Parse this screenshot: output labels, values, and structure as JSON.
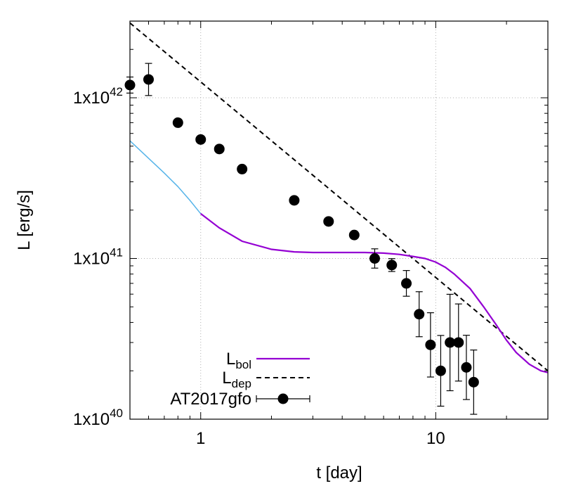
{
  "chart_data": {
    "type": "line",
    "xlabel": "t [day]",
    "ylabel": "L [erg/s]",
    "x_scale": "log",
    "y_scale": "log",
    "xlim": [
      0.5,
      30
    ],
    "ylim": [
      1e+40,
      3e+42
    ],
    "grid": true,
    "legend_position": "bottom-left",
    "x_ticks": [
      {
        "value": 1,
        "label": "1"
      },
      {
        "value": 10,
        "label": "10"
      }
    ],
    "y_ticks": [
      {
        "value": 1e+40,
        "mantissa": "1x10",
        "exponent": "40"
      },
      {
        "value": 1e+41,
        "mantissa": "1x10",
        "exponent": "41"
      },
      {
        "value": 1e+42,
        "mantissa": "1x10",
        "exponent": "42"
      }
    ],
    "colors": {
      "lbol": "#9400d3",
      "lbol_early": "#56b4e9",
      "ldep": "#000000",
      "obs": "#000000",
      "grid": "#b0b0b0"
    },
    "series": [
      {
        "key": "lbol",
        "legend_main": "L",
        "legend_sub": "bol",
        "style": "solid",
        "early_segment_until_x": 1.0,
        "x": [
          0.5,
          0.6,
          0.7,
          0.8,
          0.9,
          1.0,
          1.2,
          1.5,
          2.0,
          2.5,
          3.0,
          4.0,
          5.0,
          6.0,
          7.0,
          8.0,
          9.0,
          10.0,
          11.0,
          12.0,
          14.0,
          16.0,
          18.0,
          20.0,
          22.0,
          25.0,
          28.0,
          30.0
        ],
        "y": [
          5.4e+41,
          4.2e+41,
          3.4e+41,
          2.8e+41,
          2.3e+41,
          1.9e+41,
          1.55e+41,
          1.28e+41,
          1.14e+41,
          1.1e+41,
          1.09e+41,
          1.09e+41,
          1.09e+41,
          1.08e+41,
          1.06e+41,
          1.03e+41,
          1e+41,
          9.5e+40,
          8.8e+40,
          8e+40,
          6.5e+40,
          5e+40,
          3.9e+40,
          3.1e+40,
          2.6e+40,
          2.2e+40,
          2e+40,
          1.95e+40
        ]
      },
      {
        "key": "ldep",
        "legend_main": "L",
        "legend_sub": "dep",
        "style": "dashed",
        "x": [
          0.5,
          30.0
        ],
        "y": [
          2.92e+42,
          2e+40
        ]
      }
    ],
    "observations": {
      "name": "AT2017gfo",
      "points": [
        {
          "x": 0.5,
          "y": 1.2e+42,
          "err": 0.05
        },
        {
          "x": 0.6,
          "y": 1.3e+42,
          "err": 0.1
        },
        {
          "x": 0.8,
          "y": 7e+41,
          "err": 0
        },
        {
          "x": 1.0,
          "y": 5.5e+41,
          "err": 0
        },
        {
          "x": 1.2,
          "y": 4.8e+41,
          "err": 0
        },
        {
          "x": 1.5,
          "y": 3.6e+41,
          "err": 0
        },
        {
          "x": 2.5,
          "y": 2.3e+41,
          "err": 0
        },
        {
          "x": 3.5,
          "y": 1.7e+41,
          "err": 0
        },
        {
          "x": 4.5,
          "y": 1.4e+41,
          "err": 0
        },
        {
          "x": 5.5,
          "y": 1e+41,
          "err": 0.06
        },
        {
          "x": 6.5,
          "y": 9.1e+40,
          "err": 0.04
        },
        {
          "x": 7.5,
          "y": 7e+40,
          "err": 0.08
        },
        {
          "x": 8.5,
          "y": 4.5e+40,
          "err": 0.14
        },
        {
          "x": 9.5,
          "y": 2.9e+40,
          "err": 0.2
        },
        {
          "x": 10.5,
          "y": 2e+40,
          "err": 0.22
        },
        {
          "x": 11.5,
          "y": 3e+40,
          "err": 0.3
        },
        {
          "x": 12.5,
          "y": 3e+40,
          "err": 0.24
        },
        {
          "x": 13.5,
          "y": 2.1e+40,
          "err": 0.2
        },
        {
          "x": 14.5,
          "y": 1.7e+40,
          "err": 0.2
        }
      ]
    }
  }
}
